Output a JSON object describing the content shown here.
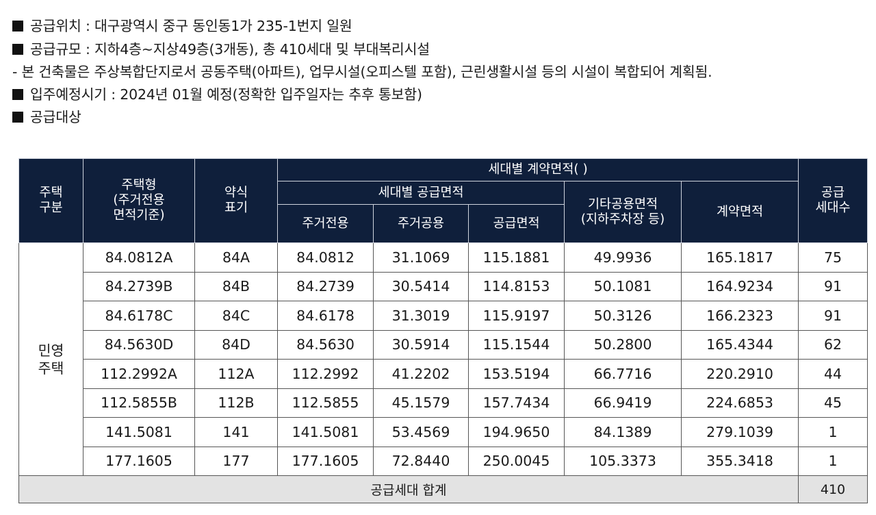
{
  "info": {
    "location": "공급위치 : 대구광역시 중구 동인동1가 235-1번지 일원",
    "scale": "공급규모 : 지하4층~지상49층(3개동), 총 410세대 및 부대복리시설",
    "note": "- 본 건축물은 주상복합단지로서 공동주택(아파트), 업무시설(오피스텔 포함), 근린생활시설 등의 시설이 복합되어 계획됨.",
    "move_in": "입주예정시기 : 2024년 01월 예정(정확한 입주일자는 추후 통보함)",
    "target": "공급대상"
  },
  "table": {
    "headers": {
      "housing_type": "주택\n구분",
      "unit_type": "주택형\n(주거전용\n면적기준)",
      "short": "약식\n표기",
      "contract_area_group": "세대별 계약면적( )",
      "supply_area_group": "세대별 공급면적",
      "exclusive": "주거전용",
      "common": "주거공용",
      "supply": "공급면적",
      "other_common": "기타공용면적\n(지하주차장 등)",
      "contract": "계약면적",
      "units": "공급\n세대수"
    },
    "group_label": "민영\n주택",
    "rows": [
      {
        "unit_type": "84.0812A",
        "short": "84A",
        "exclusive": "84.0812",
        "common": "31.1069",
        "supply": "115.1881",
        "other": "49.9936",
        "contract": "165.1817",
        "units": "75"
      },
      {
        "unit_type": "84.2739B",
        "short": "84B",
        "exclusive": "84.2739",
        "common": "30.5414",
        "supply": "114.8153",
        "other": "50.1081",
        "contract": "164.9234",
        "units": "91"
      },
      {
        "unit_type": "84.6178C",
        "short": "84C",
        "exclusive": "84.6178",
        "common": "31.3019",
        "supply": "115.9197",
        "other": "50.3126",
        "contract": "166.2323",
        "units": "91"
      },
      {
        "unit_type": "84.5630D",
        "short": "84D",
        "exclusive": "84.5630",
        "common": "30.5914",
        "supply": "115.1544",
        "other": "50.2800",
        "contract": "165.4344",
        "units": "62"
      },
      {
        "unit_type": "112.2992A",
        "short": "112A",
        "exclusive": "112.2992",
        "common": "41.2202",
        "supply": "153.5194",
        "other": "66.7716",
        "contract": "220.2910",
        "units": "44"
      },
      {
        "unit_type": "112.5855B",
        "short": "112B",
        "exclusive": "112.5855",
        "common": "45.1579",
        "supply": "157.7434",
        "other": "66.9419",
        "contract": "224.6853",
        "units": "45"
      },
      {
        "unit_type": "141.5081",
        "short": "141",
        "exclusive": "141.5081",
        "common": "53.4569",
        "supply": "194.9650",
        "other": "84.1389",
        "contract": "279.1039",
        "units": "1"
      },
      {
        "unit_type": "177.1605",
        "short": "177",
        "exclusive": "177.1605",
        "common": "72.8440",
        "supply": "250.0045",
        "other": "105.3373",
        "contract": "355.3418",
        "units": "1"
      }
    ],
    "total_label": "공급세대 합계",
    "total_units": "410"
  }
}
